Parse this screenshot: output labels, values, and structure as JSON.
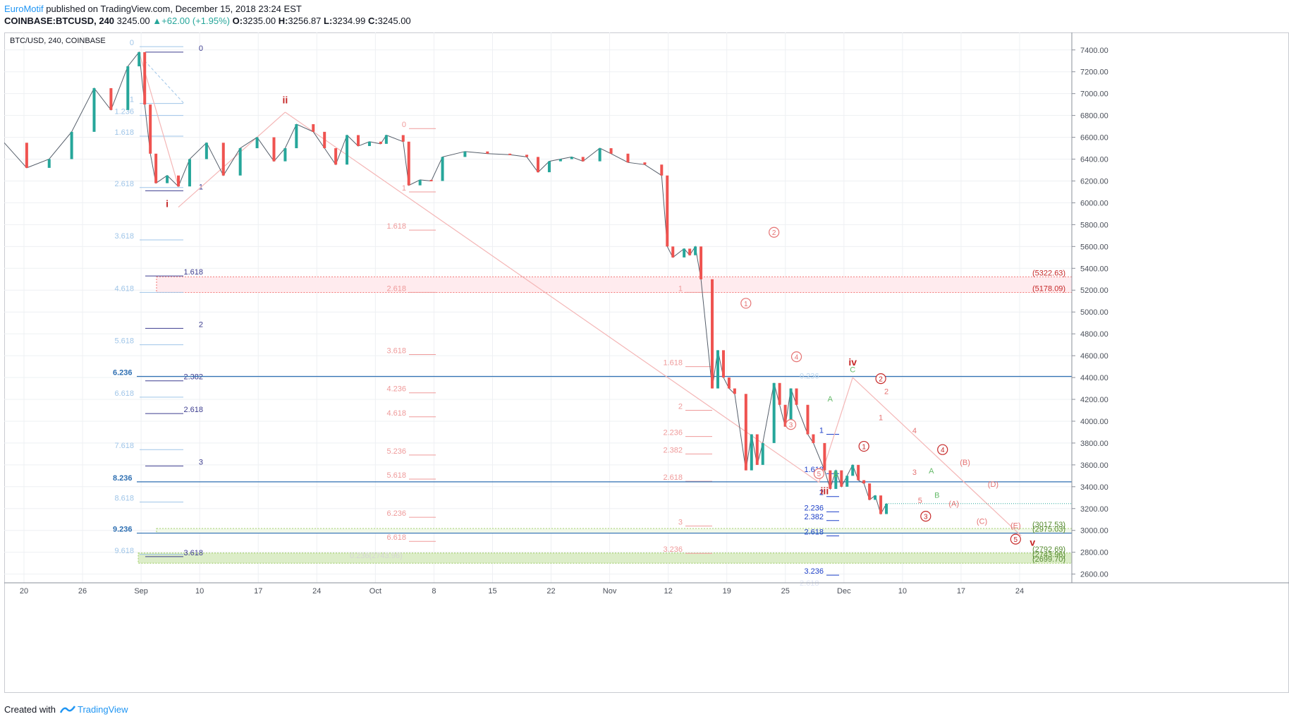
{
  "header": {
    "author": "EuroMotif",
    "published": "published on TradingView.com, December 15, 2018 23:24 EST",
    "symbol": "COINBASE:BTCUSD, 240",
    "last": "3245.00",
    "change": "▲+62.00 (+1.95%)",
    "o_label": "O:",
    "o": "3235.00",
    "h_label": "H:",
    "h": "3256.87",
    "l_label": "L:",
    "l": "3234.99",
    "c_label": "C:",
    "c": "3245.00"
  },
  "footer": {
    "created": "Created with",
    "brand": "TradingView"
  },
  "colors": {
    "up": "#26a69a",
    "down": "#ef5350",
    "wave": "#c62828",
    "fib_light": "#9fc5e8",
    "fib_navy": "#3d3d8f",
    "fib_red": "#ef9a9a",
    "blue_line": "#2e6fb2",
    "green_zone": "#8bc34a",
    "grid": "#eef0f3"
  },
  "chart_data": {
    "type": "candlestick",
    "title": "BTC/USD, 240, COINBASE",
    "ylim": [
      2520,
      7560
    ],
    "y_ticks": [
      "7400.00",
      "7200.00",
      "7000.00",
      "6800.00",
      "6600.00",
      "6400.00",
      "6200.00",
      "6000.00",
      "5800.00",
      "5600.00",
      "5400.00",
      "5200.00",
      "5000.00",
      "4800.00",
      "4600.00",
      "4400.00",
      "4200.00",
      "4000.00",
      "3800.00",
      "3600.00",
      "3400.00",
      "3200.00",
      "3000.00",
      "2800.00",
      "2600.00"
    ],
    "x_ticks": [
      "20",
      "26",
      "Sep",
      "10",
      "17",
      "24",
      "Oct",
      "8",
      "15",
      "22",
      "Nov",
      "12",
      "19",
      "25",
      "Dec",
      "10",
      "17",
      "24"
    ],
    "price_path": [
      [
        0,
        6550
      ],
      [
        4,
        6320
      ],
      [
        8,
        6400
      ],
      [
        12,
        6650
      ],
      [
        16,
        7050
      ],
      [
        19,
        6850
      ],
      [
        22,
        7250
      ],
      [
        24,
        7380
      ],
      [
        25,
        6900
      ],
      [
        26,
        6450
      ],
      [
        27,
        6180
      ],
      [
        29,
        6250
      ],
      [
        31,
        6150
      ],
      [
        33,
        6400
      ],
      [
        36,
        6550
      ],
      [
        39,
        6250
      ],
      [
        42,
        6500
      ],
      [
        45,
        6600
      ],
      [
        48,
        6380
      ],
      [
        50,
        6500
      ],
      [
        52,
        6720
      ],
      [
        55,
        6650
      ],
      [
        57,
        6500
      ],
      [
        59,
        6350
      ],
      [
        61,
        6620
      ],
      [
        63,
        6520
      ],
      [
        65,
        6560
      ],
      [
        67,
        6540
      ],
      [
        68,
        6620
      ],
      [
        71,
        6560
      ],
      [
        72,
        6160
      ],
      [
        74,
        6210
      ],
      [
        76,
        6200
      ],
      [
        78,
        6420
      ],
      [
        82,
        6470
      ],
      [
        86,
        6450
      ],
      [
        90,
        6440
      ],
      [
        93,
        6420
      ],
      [
        95,
        6280
      ],
      [
        97,
        6380
      ],
      [
        99,
        6400
      ],
      [
        101,
        6420
      ],
      [
        103,
        6380
      ],
      [
        106,
        6500
      ],
      [
        108,
        6450
      ],
      [
        111,
        6370
      ],
      [
        114,
        6350
      ],
      [
        117,
        6250
      ],
      [
        118,
        5600
      ],
      [
        119,
        5500
      ],
      [
        121,
        5580
      ],
      [
        122,
        5520
      ],
      [
        123,
        5600
      ],
      [
        124,
        5300
      ],
      [
        126,
        4300
      ],
      [
        127,
        4650
      ],
      [
        128,
        4400
      ],
      [
        129,
        4300
      ],
      [
        130,
        4250
      ],
      [
        132,
        3550
      ],
      [
        133,
        3880
      ],
      [
        134,
        3600
      ],
      [
        135,
        3800
      ],
      [
        137,
        4350
      ],
      [
        138,
        4150
      ],
      [
        139,
        3950
      ],
      [
        140,
        4300
      ],
      [
        141,
        4150
      ],
      [
        143,
        3880
      ],
      [
        144,
        3800
      ],
      [
        146,
        3550
      ],
      [
        147,
        3380
      ],
      [
        148,
        3550
      ],
      [
        149,
        3400
      ],
      [
        150,
        3500
      ],
      [
        151,
        3600
      ],
      [
        152,
        3460
      ],
      [
        153,
        3430
      ],
      [
        154,
        3280
      ],
      [
        155,
        3320
      ],
      [
        156,
        3150
      ],
      [
        157,
        3245
      ]
    ],
    "price_scale_tags": [
      {
        "label": "(5322.63)",
        "value": 5322.63
      },
      {
        "label": "(5178.09)",
        "value": 5178.09
      },
      {
        "label": "(3017.53)",
        "value": 3017.53
      },
      {
        "label": "(2975.03)",
        "value": 2975.03
      },
      {
        "label": "(2792.69)",
        "value": 2792.69
      },
      {
        "label": "(2743.96)",
        "value": 2743.96
      },
      {
        "label": "(2699.70)",
        "value": 2699.7
      }
    ],
    "blue_levels": [
      {
        "label": "6.236",
        "value": 4410
      },
      {
        "label": "8.236",
        "value": 3445
      },
      {
        "label": "9.236",
        "value": 2975
      }
    ],
    "fib_light": [
      {
        "label": "0",
        "value": 7430
      },
      {
        "label": "1",
        "value": 6910
      },
      {
        "label": "1.236",
        "value": 6800
      },
      {
        "label": "1.618",
        "value": 6610
      },
      {
        "label": "2.618",
        "value": 6140
      },
      {
        "label": "3.618",
        "value": 5660
      },
      {
        "label": "4.618",
        "value": 5180
      },
      {
        "label": "5.618",
        "value": 4700
      },
      {
        "label": "6.618",
        "value": 4220
      },
      {
        "label": "7.618",
        "value": 3740
      },
      {
        "label": "8.618",
        "value": 3260
      },
      {
        "label": "9.618",
        "value": 2780
      }
    ],
    "fib_navy": [
      {
        "label": "0",
        "value": 7380
      },
      {
        "label": "1",
        "value": 6110
      },
      {
        "label": "1.618",
        "value": 5330
      },
      {
        "label": "2",
        "value": 4850
      },
      {
        "label": "2.382",
        "value": 4370
      },
      {
        "label": "2.618",
        "value": 4070
      },
      {
        "label": "3",
        "value": 3590
      },
      {
        "label": "3.618",
        "value": 2760
      }
    ],
    "fib_red_a": [
      {
        "label": "0",
        "value": 6680
      },
      {
        "label": "1",
        "value": 6100
      },
      {
        "label": "1.618",
        "value": 5750
      },
      {
        "label": "2.618",
        "value": 5180
      },
      {
        "label": "3.618",
        "value": 4610
      },
      {
        "label": "4.236",
        "value": 4260
      },
      {
        "label": "4.618",
        "value": 4040
      },
      {
        "label": "5.236",
        "value": 3690
      },
      {
        "label": "5.618",
        "value": 3470
      },
      {
        "label": "6.236",
        "value": 3120
      },
      {
        "label": "6.618",
        "value": 2900
      }
    ],
    "fib_red_b": [
      {
        "label": "1",
        "value": 5180
      },
      {
        "label": "1.618",
        "value": 4500
      },
      {
        "label": "2",
        "value": 4100
      },
      {
        "label": "2.236",
        "value": 3860
      },
      {
        "label": "2.382",
        "value": 3700
      },
      {
        "label": "2.618",
        "value": 3450
      },
      {
        "label": "3",
        "value": 3040
      },
      {
        "label": "3.236",
        "value": 2790
      }
    ],
    "fib_blue": [
      {
        "label": "1",
        "value": 3880
      },
      {
        "label": "1.618",
        "value": 3520
      },
      {
        "label": "2",
        "value": 3310
      },
      {
        "label": "2.236",
        "value": 3170
      },
      {
        "label": "2.382",
        "value": 3090
      },
      {
        "label": "2.618",
        "value": 2950
      },
      {
        "label": "3.236",
        "value": 2590
      }
    ],
    "extra_labels": [
      "0.236",
      "0.236(2743.96)",
      "2.618"
    ],
    "wave_labels": [
      {
        "label": "i",
        "x": 29,
        "value": 5960
      },
      {
        "label": "ii",
        "x": 50,
        "value": 6910
      },
      {
        "label": "iii",
        "x": 146,
        "value": 3330
      },
      {
        "label": "iv",
        "x": 151,
        "value": 4510
      },
      {
        "label": "v",
        "x": 183,
        "value": 2860
      }
    ],
    "circled_labels": [
      {
        "label": "1",
        "x": 132,
        "value": 5080
      },
      {
        "label": "2",
        "x": 137,
        "value": 5730
      },
      {
        "label": "3",
        "x": 140,
        "value": 3970
      },
      {
        "label": "4",
        "x": 141,
        "value": 4590
      },
      {
        "label": "5",
        "x": 145,
        "value": 3520
      },
      {
        "label": "1",
        "x": 153,
        "value": 3770
      },
      {
        "label": "2",
        "x": 156,
        "value": 4390
      },
      {
        "label": "3",
        "x": 164,
        "value": 3130
      },
      {
        "label": "4",
        "x": 167,
        "value": 3740
      },
      {
        "label": "5",
        "x": 180,
        "value": 2920
      }
    ],
    "small_labels": [
      {
        "label": "C",
        "x": 151,
        "value": 4450
      },
      {
        "label": "A",
        "x": 147,
        "value": 4180
      },
      {
        "label": "B",
        "x": 148,
        "value": 3490
      },
      {
        "label": "2",
        "x": 157,
        "value": 4250
      },
      {
        "label": "1",
        "x": 156,
        "value": 4010
      },
      {
        "label": "4",
        "x": 162,
        "value": 3890
      },
      {
        "label": "3",
        "x": 162,
        "value": 3510
      },
      {
        "label": "5",
        "x": 163,
        "value": 3250
      },
      {
        "label": "A",
        "x": 165,
        "value": 3520
      },
      {
        "label": "B",
        "x": 166,
        "value": 3300
      },
      {
        "label": "(A)",
        "x": 169,
        "value": 3220
      },
      {
        "label": "(B)",
        "x": 171,
        "value": 3600
      },
      {
        "label": "(C)",
        "x": 174,
        "value": 3060
      },
      {
        "label": "(D)",
        "x": 176,
        "value": 3400
      },
      {
        "label": "(E)",
        "x": 180,
        "value": 3020
      }
    ]
  }
}
